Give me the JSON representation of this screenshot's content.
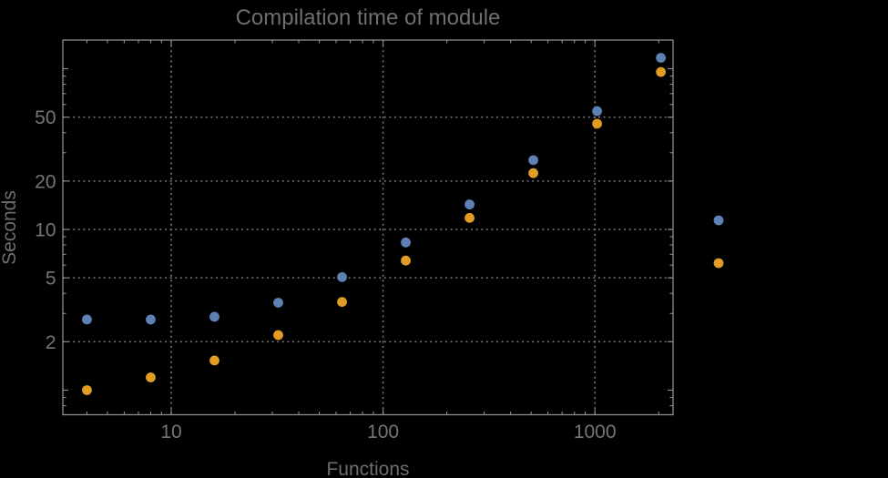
{
  "colors": {
    "background": "#000000",
    "title_text": "#6e6e6e",
    "tick_text": "#757575",
    "axis_label_text": "#6e6e6e",
    "frame": "#8c8c8c",
    "grid": "#7a7a7a",
    "series_blue": "#5E81B5",
    "series_orange": "#E19C24"
  },
  "chart_data": {
    "type": "scatter",
    "title": "Compilation time of module",
    "xlabel": "Functions",
    "ylabel": "Seconds",
    "x_scale": "log",
    "y_scale": "log",
    "xlim": [
      3.1,
      2350
    ],
    "ylim": [
      0.69,
      153
    ],
    "grid": {
      "style": "dotted",
      "x_values": [
        10,
        100,
        1000
      ],
      "y_values": [
        2,
        5,
        10,
        20,
        50
      ]
    },
    "x_ticks": {
      "major": [
        {
          "value": 10,
          "label": "10"
        },
        {
          "value": 100,
          "label": "100"
        },
        {
          "value": 1000,
          "label": "1000"
        }
      ],
      "minor": [
        4,
        5,
        6,
        7,
        8,
        9,
        20,
        30,
        40,
        50,
        60,
        70,
        80,
        90,
        200,
        300,
        400,
        500,
        600,
        700,
        800,
        900,
        2000
      ]
    },
    "y_ticks": {
      "major": [
        {
          "value": 1,
          "label": ""
        },
        {
          "value": 2,
          "label": "2"
        },
        {
          "value": 5,
          "label": "5"
        },
        {
          "value": 10,
          "label": "10"
        },
        {
          "value": 20,
          "label": "20"
        },
        {
          "value": 50,
          "label": "50"
        },
        {
          "value": 100,
          "label": ""
        }
      ],
      "minor": [
        0.8,
        0.9,
        3,
        4,
        6,
        7,
        8,
        9,
        30,
        40,
        60,
        70,
        80,
        90
      ]
    },
    "series": [
      {
        "name": "series-1-blue",
        "color": "#5E81B5",
        "marker": "circle",
        "x": [
          4,
          8,
          16,
          32,
          64,
          128,
          256,
          512,
          1024,
          2048
        ],
        "y": [
          2.75,
          2.75,
          2.86,
          3.5,
          5.05,
          8.3,
          14.3,
          27,
          54.5,
          117
        ]
      },
      {
        "name": "series-2-orange",
        "color": "#E19C24",
        "marker": "circle",
        "x": [
          4,
          8,
          16,
          32,
          64,
          128,
          256,
          512,
          1024,
          2048
        ],
        "y": [
          1.0,
          1.2,
          1.53,
          2.2,
          3.54,
          6.4,
          11.8,
          22.4,
          45.5,
          95.5
        ]
      }
    ],
    "legend": {
      "position": "right-of-plot",
      "labels_visible": false,
      "markers": [
        {
          "series": "series-1-blue",
          "color": "#5E81B5"
        },
        {
          "series": "series-2-orange",
          "color": "#E19C24"
        }
      ]
    }
  }
}
